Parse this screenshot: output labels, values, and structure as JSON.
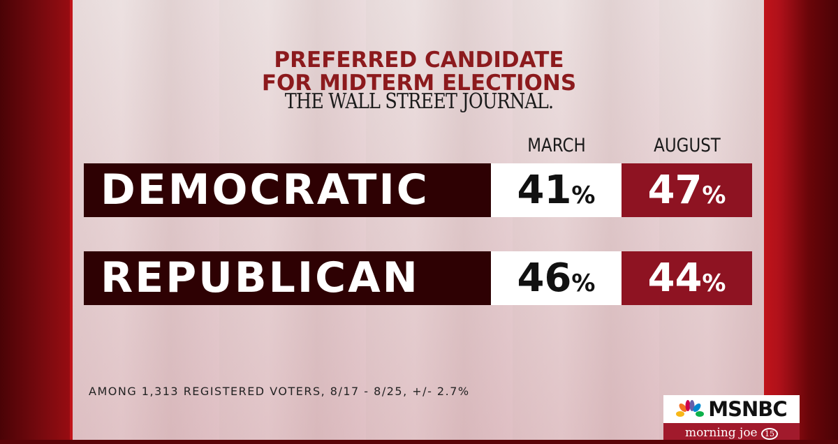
{
  "chart_data": {
    "type": "table",
    "title": [
      "PREFERRED CANDIDATE",
      "FOR MIDTERM ELECTIONS"
    ],
    "source": "THE WALL STREET JOURNAL.",
    "columns": [
      "MARCH",
      "AUGUST"
    ],
    "rows": [
      {
        "label": "DEMOCRATIC",
        "values": [
          "41",
          "47"
        ]
      },
      {
        "label": "REPUBLICAN",
        "values": [
          "46",
          "44"
        ]
      }
    ],
    "unit": "%",
    "note": "AMONG 1,313 REGISTERED VOTERS, 8/17 - 8/25, +/- 2.7%"
  },
  "branding": {
    "network": "MSNBC",
    "show": "morning joe",
    "badge": "15"
  },
  "colors": {
    "title": "#8c1a1d",
    "label_bg": "#2e0103",
    "august_bg": "#8e1322",
    "march_bg": "#ffffff"
  }
}
